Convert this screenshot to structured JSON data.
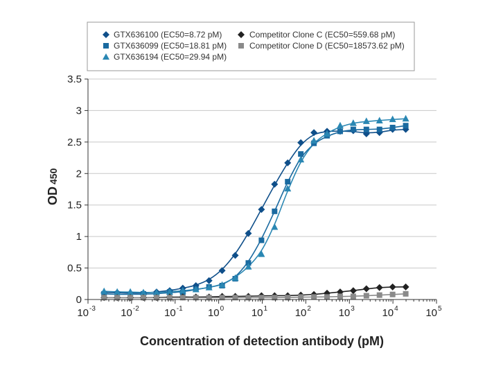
{
  "chart_data": {
    "type": "scatter",
    "xscale": "log",
    "xlabel": "Concentration of detection antibody (pM)",
    "ylabel": "OD",
    "ylabel_sub": "450",
    "xlim_exp": [
      -3,
      5
    ],
    "ylim": [
      0,
      3.5
    ],
    "ytick_labels": [
      "0",
      "0.5",
      "1",
      "1.5",
      "2",
      "2.5",
      "3",
      "3.5"
    ],
    "xtick_base": "10",
    "xtick_exponents": [
      "-3",
      "-2",
      "-1",
      "0",
      "1",
      "2",
      "3",
      "4",
      "5"
    ],
    "grid": "horizontal",
    "legend_position": "top",
    "series": [
      {
        "name": "GTX636100 (EC50=8.72 pM)",
        "marker": "diamond",
        "color": "#0f4f8a",
        "x": [
          0.00234,
          0.00468,
          0.00937,
          0.0187,
          0.0375,
          0.075,
          0.15,
          0.3,
          0.6,
          1.2,
          2.4,
          4.8,
          9.6,
          19.2,
          38.4,
          76.8,
          153.6,
          307.2,
          614.4,
          1228.8,
          2457.6,
          4915.2,
          9830.4,
          19660.8
        ],
        "y": [
          0.11,
          0.11,
          0.1,
          0.1,
          0.12,
          0.14,
          0.18,
          0.22,
          0.3,
          0.46,
          0.7,
          1.05,
          1.43,
          1.83,
          2.17,
          2.49,
          2.65,
          2.67,
          2.67,
          2.68,
          2.63,
          2.65,
          2.7,
          2.7
        ]
      },
      {
        "name": "GTX636099 (EC50=18.81 pM)",
        "marker": "square",
        "color": "#1a6aa0",
        "x": [
          0.00234,
          0.00468,
          0.00937,
          0.0187,
          0.0375,
          0.075,
          0.15,
          0.3,
          0.6,
          1.2,
          2.4,
          4.8,
          9.6,
          19.2,
          38.4,
          76.8,
          153.6,
          307.2,
          614.4,
          1228.8,
          2457.6,
          4915.2,
          9830.4,
          19660.8
        ],
        "y": [
          0.09,
          0.08,
          0.08,
          0.09,
          0.08,
          0.12,
          0.11,
          0.16,
          0.2,
          0.22,
          0.33,
          0.58,
          0.94,
          1.4,
          1.87,
          2.31,
          2.48,
          2.6,
          2.67,
          2.7,
          2.7,
          2.7,
          2.73,
          2.76
        ]
      },
      {
        "name": "GTX636194 (EC50=29.94 pM)",
        "marker": "triangle",
        "color": "#2a87b3",
        "x": [
          0.00234,
          0.00468,
          0.00937,
          0.0187,
          0.0375,
          0.075,
          0.15,
          0.3,
          0.6,
          1.2,
          2.4,
          4.8,
          9.6,
          19.2,
          38.4,
          76.8,
          153.6,
          307.2,
          614.4,
          1228.8,
          2457.6,
          4915.2,
          9830.4,
          19660.8
        ],
        "y": [
          0.13,
          0.12,
          0.12,
          0.11,
          0.11,
          0.12,
          0.14,
          0.16,
          0.19,
          0.23,
          0.34,
          0.52,
          0.72,
          1.15,
          1.76,
          2.22,
          2.52,
          2.63,
          2.76,
          2.8,
          2.83,
          2.84,
          2.86,
          2.87
        ]
      },
      {
        "name": "Competitor Clone C (EC50=559.68 pM)",
        "marker": "diamond",
        "color": "#222222",
        "x": [
          0.00234,
          0.00468,
          0.00937,
          0.0187,
          0.0375,
          0.075,
          0.15,
          0.3,
          0.6,
          1.2,
          2.4,
          4.8,
          9.6,
          19.2,
          38.4,
          76.8,
          153.6,
          307.2,
          614.4,
          1228.8,
          2457.6,
          4915.2,
          9830.4,
          19660.8
        ],
        "y": [
          0.03,
          0.03,
          0.03,
          0.03,
          0.03,
          0.04,
          0.04,
          0.04,
          0.04,
          0.05,
          0.05,
          0.05,
          0.06,
          0.06,
          0.06,
          0.07,
          0.08,
          0.1,
          0.12,
          0.14,
          0.17,
          0.19,
          0.2,
          0.2
        ]
      },
      {
        "name": "Competitor Clone D (EC50=18573.62 pM)",
        "marker": "square",
        "color": "#8a8a8a",
        "x": [
          0.00234,
          0.00468,
          0.00937,
          0.0187,
          0.0375,
          0.075,
          0.15,
          0.3,
          0.6,
          1.2,
          2.4,
          4.8,
          9.6,
          19.2,
          38.4,
          76.8,
          153.6,
          307.2,
          614.4,
          1228.8,
          2457.6,
          4915.2,
          9830.4,
          19660.8
        ],
        "y": [
          0.03,
          0.03,
          0.03,
          0.03,
          0.03,
          0.03,
          0.03,
          0.03,
          0.03,
          0.03,
          0.03,
          0.03,
          0.03,
          0.03,
          0.03,
          0.04,
          0.04,
          0.04,
          0.05,
          0.05,
          0.06,
          0.07,
          0.08,
          0.09
        ]
      }
    ]
  }
}
